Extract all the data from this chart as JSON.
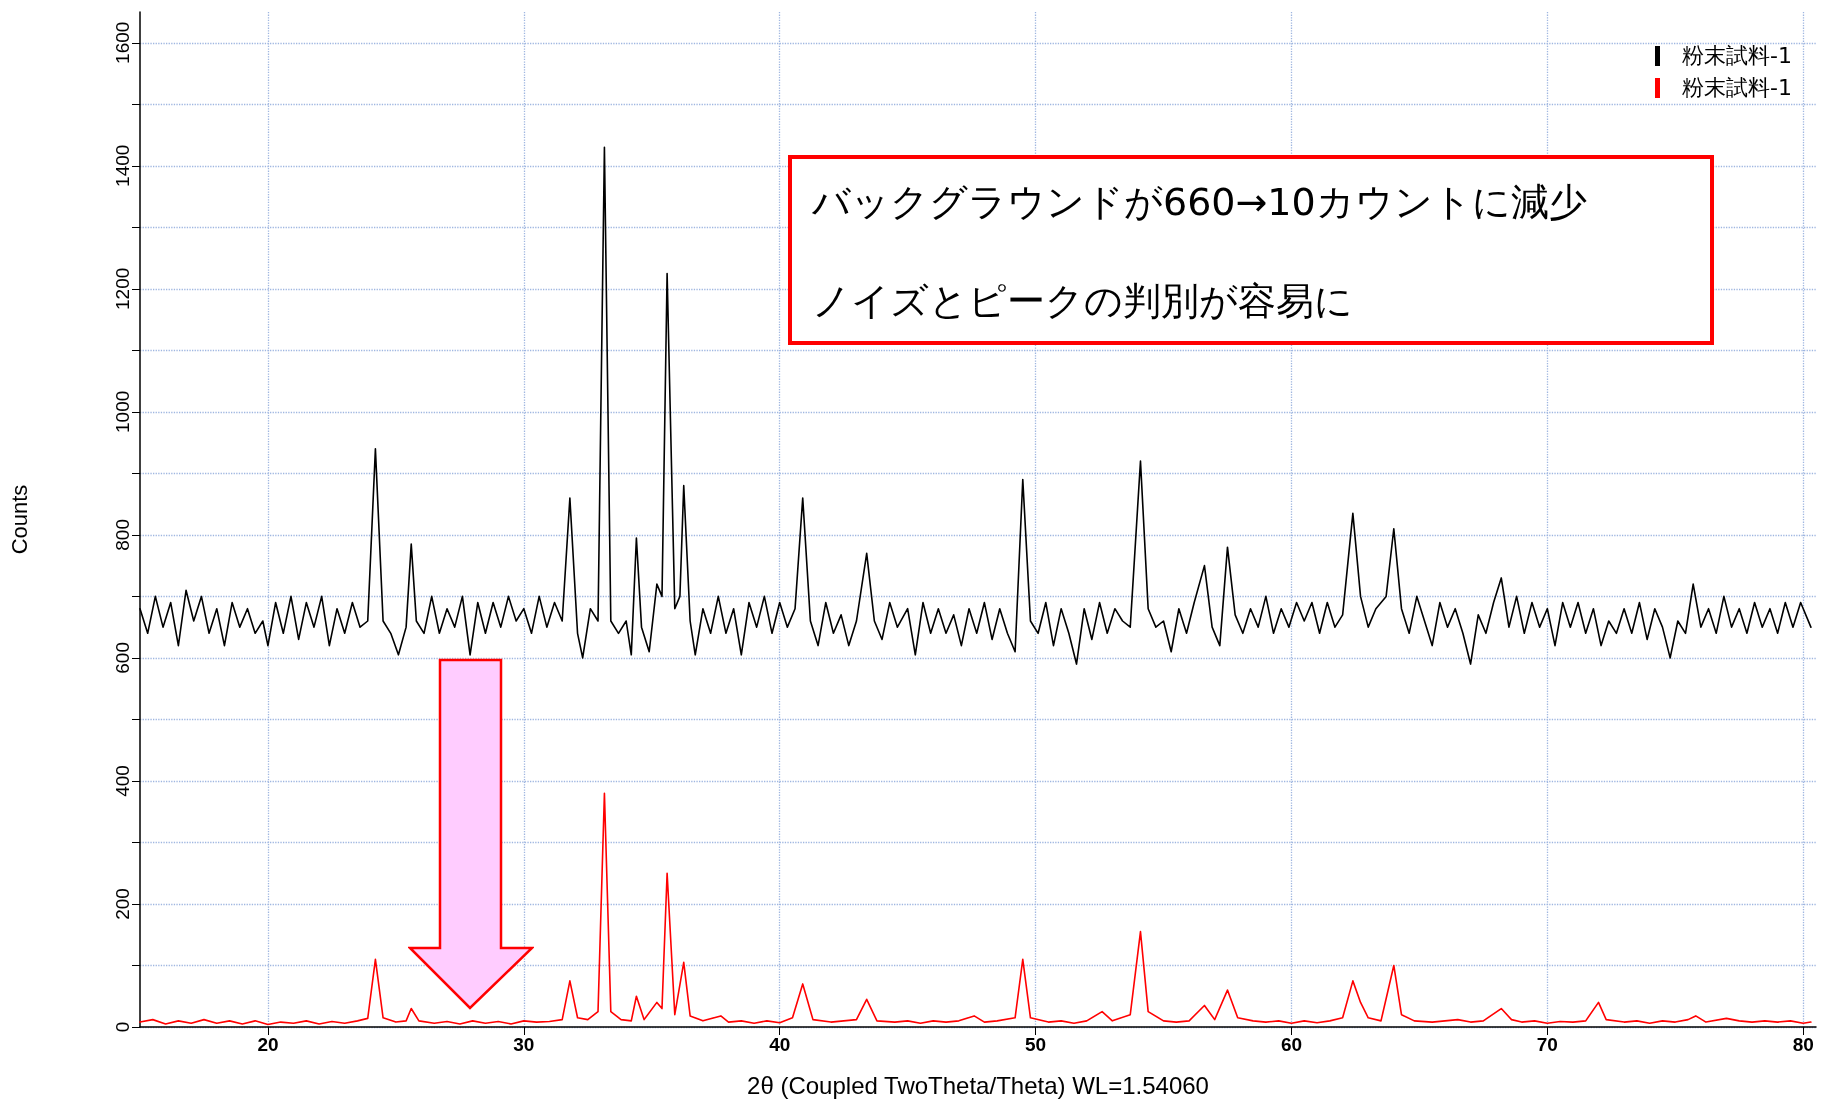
{
  "chart_data": {
    "type": "line",
    "xlabel": "2θ (Coupled TwoTheta/Theta) WL=1.54060",
    "ylabel": "Counts",
    "xlim": [
      15,
      80.5
    ],
    "xticks": [
      20,
      30,
      40,
      50,
      60,
      70,
      80
    ],
    "ylim": [
      0,
      1650
    ],
    "yticks": [
      0,
      {
        "value": 100,
        "label": null
      },
      200,
      {
        "value": 300,
        "label": null
      },
      400,
      {
        "value": 500,
        "label": null
      },
      600,
      {
        "value": 700,
        "label": null
      },
      800,
      {
        "value": 900,
        "label": null
      },
      1000,
      {
        "value": 1100,
        "label": null
      },
      1200,
      {
        "value": 1300,
        "label": null
      },
      1400,
      {
        "value": 1500,
        "label": null
      },
      1600
    ],
    "grid": true,
    "legend": "top right",
    "marker": "none",
    "line_style": "solid",
    "annotations": [
      "バックグラウンドが660→10カウントに減少",
      "ノイズとピークの判別が容易に"
    ],
    "series": [
      {
        "name": "粉末試料-1",
        "color": "#000000",
        "x": [
          15,
          15.3,
          15.6,
          15.9,
          16.2,
          16.5,
          16.8,
          17.1,
          17.4,
          17.7,
          18,
          18.3,
          18.6,
          18.9,
          19.2,
          19.5,
          19.8,
          20,
          20.3,
          20.6,
          20.9,
          21.2,
          21.5,
          21.8,
          22.1,
          22.4,
          22.7,
          23,
          23.3,
          23.6,
          23.9,
          24.2,
          24.5,
          24.8,
          25.1,
          25.4,
          25.6,
          25.8,
          26.1,
          26.4,
          26.7,
          27,
          27.3,
          27.6,
          27.9,
          28.2,
          28.5,
          28.8,
          29.1,
          29.4,
          29.7,
          30,
          30.3,
          30.6,
          30.9,
          31.2,
          31.5,
          31.8,
          32.1,
          32.3,
          32.6,
          32.9,
          33.15,
          33.4,
          33.7,
          34,
          34.2,
          34.4,
          34.6,
          34.9,
          35.2,
          35.4,
          35.6,
          35.9,
          36.1,
          36.25,
          36.5,
          36.7,
          37,
          37.3,
          37.6,
          37.9,
          38.2,
          38.5,
          38.8,
          39.1,
          39.4,
          39.7,
          40,
          40.3,
          40.6,
          40.9,
          41.2,
          41.5,
          41.8,
          42.1,
          42.4,
          42.7,
          43,
          43.4,
          43.7,
          44,
          44.3,
          44.6,
          45,
          45.3,
          45.6,
          45.9,
          46.2,
          46.5,
          46.8,
          47.1,
          47.4,
          47.7,
          48,
          48.3,
          48.6,
          48.9,
          49.2,
          49.5,
          49.8,
          50.1,
          50.4,
          50.7,
          51,
          51.3,
          51.6,
          51.9,
          52.2,
          52.5,
          52.8,
          53.1,
          53.4,
          53.7,
          54.1,
          54.4,
          54.7,
          55,
          55.3,
          55.6,
          55.9,
          56.2,
          56.6,
          56.9,
          57.2,
          57.5,
          57.8,
          58.1,
          58.4,
          58.7,
          59,
          59.3,
          59.6,
          59.9,
          60.2,
          60.5,
          60.8,
          61.1,
          61.4,
          61.7,
          62,
          62.4,
          62.7,
          63,
          63.3,
          63.7,
          64,
          64.3,
          64.6,
          64.9,
          65.2,
          65.5,
          65.8,
          66.1,
          66.4,
          66.7,
          67,
          67.3,
          67.6,
          67.9,
          68.2,
          68.5,
          68.8,
          69.1,
          69.4,
          69.7,
          70,
          70.3,
          70.6,
          70.9,
          71.2,
          71.5,
          71.8,
          72.1,
          72.4,
          72.7,
          73,
          73.3,
          73.6,
          73.9,
          74.2,
          74.5,
          74.8,
          75.1,
          75.4,
          75.7,
          76,
          76.3,
          76.6,
          76.9,
          77.2,
          77.5,
          77.8,
          78.1,
          78.4,
          78.7,
          79,
          79.3,
          79.6,
          79.9,
          80.3
        ],
        "values": [
          680,
          640,
          700,
          650,
          690,
          620,
          710,
          660,
          700,
          640,
          680,
          620,
          690,
          650,
          680,
          640,
          660,
          620,
          690,
          640,
          700,
          630,
          690,
          650,
          700,
          620,
          680,
          640,
          690,
          650,
          660,
          940,
          660,
          640,
          605,
          650,
          785,
          660,
          640,
          700,
          640,
          680,
          650,
          700,
          605,
          690,
          640,
          690,
          650,
          700,
          660,
          680,
          640,
          700,
          650,
          690,
          660,
          860,
          640,
          600,
          680,
          660,
          1430,
          660,
          640,
          660,
          605,
          795,
          650,
          610,
          720,
          700,
          1225,
          680,
          700,
          880,
          660,
          605,
          680,
          640,
          700,
          640,
          680,
          605,
          690,
          650,
          700,
          640,
          690,
          650,
          680,
          860,
          660,
          620,
          690,
          640,
          670,
          620,
          660,
          770,
          660,
          630,
          690,
          650,
          680,
          605,
          690,
          640,
          680,
          640,
          670,
          620,
          680,
          640,
          690,
          630,
          680,
          640,
          610,
          890,
          660,
          640,
          690,
          620,
          680,
          640,
          590,
          680,
          630,
          690,
          640,
          680,
          660,
          650,
          920,
          680,
          650,
          660,
          610,
          680,
          640,
          690,
          750,
          650,
          620,
          780,
          670,
          640,
          680,
          650,
          700,
          640,
          680,
          650,
          690,
          660,
          690,
          640,
          690,
          650,
          670,
          835,
          700,
          650,
          680,
          700,
          810,
          680,
          640,
          700,
          660,
          620,
          690,
          650,
          680,
          640,
          590,
          670,
          640,
          690,
          730,
          650,
          700,
          640,
          690,
          650,
          680,
          620,
          690,
          650,
          690,
          640,
          680,
          620,
          660,
          640,
          680,
          640,
          690,
          630,
          680,
          650,
          600,
          660,
          640,
          720,
          650,
          680,
          640,
          700,
          650,
          680,
          640,
          690,
          650,
          680,
          640,
          690,
          650,
          690,
          650
        ]
      },
      {
        "name": "粉末試料-1",
        "color": "#ff0000",
        "x": [
          15,
          15.5,
          16,
          16.5,
          17,
          17.5,
          18,
          18.5,
          19,
          19.5,
          20,
          20.5,
          21,
          21.5,
          22,
          22.5,
          23,
          23.5,
          23.9,
          24.2,
          24.5,
          25,
          25.4,
          25.6,
          25.9,
          26.5,
          27,
          27.5,
          28,
          28.5,
          29,
          29.5,
          30,
          30.5,
          31,
          31.5,
          31.8,
          32.1,
          32.5,
          32.9,
          33.15,
          33.4,
          33.8,
          34.2,
          34.4,
          34.7,
          35.2,
          35.4,
          35.6,
          35.9,
          36.25,
          36.5,
          37,
          37.7,
          38,
          38.5,
          39,
          39.5,
          40,
          40.5,
          40.9,
          41.3,
          42,
          42.5,
          43,
          43.4,
          43.8,
          44.5,
          45,
          45.5,
          46,
          46.5,
          47,
          47.6,
          48,
          48.5,
          49.2,
          49.5,
          49.8,
          50.5,
          51,
          51.5,
          52,
          52.6,
          53,
          53.7,
          54.1,
          54.4,
          55,
          55.5,
          56,
          56.6,
          57,
          57.5,
          57.9,
          58.5,
          59,
          59.5,
          60,
          60.5,
          61,
          61.5,
          62,
          62.4,
          62.7,
          63,
          63.5,
          64,
          64.3,
          64.8,
          65.5,
          66,
          66.5,
          67,
          67.5,
          68.2,
          68.6,
          69,
          69.5,
          70,
          70.5,
          71,
          71.5,
          72,
          72.3,
          73,
          73.5,
          74,
          74.5,
          75,
          75.5,
          75.8,
          76.2,
          77,
          77.5,
          78,
          78.5,
          79,
          79.5,
          80,
          80.3
        ],
        "values": [
          8,
          12,
          5,
          10,
          6,
          12,
          6,
          10,
          5,
          10,
          4,
          8,
          6,
          10,
          5,
          9,
          6,
          10,
          14,
          110,
          15,
          8,
          10,
          30,
          10,
          6,
          9,
          5,
          10,
          6,
          9,
          5,
          10,
          8,
          9,
          12,
          75,
          15,
          12,
          25,
          380,
          25,
          12,
          10,
          50,
          12,
          40,
          30,
          250,
          20,
          105,
          18,
          10,
          18,
          8,
          10,
          6,
          10,
          7,
          15,
          70,
          12,
          8,
          10,
          12,
          45,
          10,
          8,
          10,
          6,
          10,
          8,
          10,
          18,
          8,
          10,
          15,
          110,
          15,
          8,
          10,
          6,
          10,
          25,
          10,
          20,
          155,
          25,
          10,
          8,
          10,
          35,
          12,
          60,
          15,
          10,
          8,
          10,
          6,
          10,
          7,
          10,
          15,
          75,
          40,
          15,
          10,
          100,
          20,
          10,
          8,
          10,
          12,
          8,
          10,
          30,
          12,
          8,
          10,
          6,
          9,
          8,
          10,
          40,
          12,
          8,
          10,
          6,
          10,
          8,
          12,
          18,
          8,
          14,
          10,
          8,
          10,
          8,
          10,
          6,
          8
        ]
      }
    ]
  }
}
